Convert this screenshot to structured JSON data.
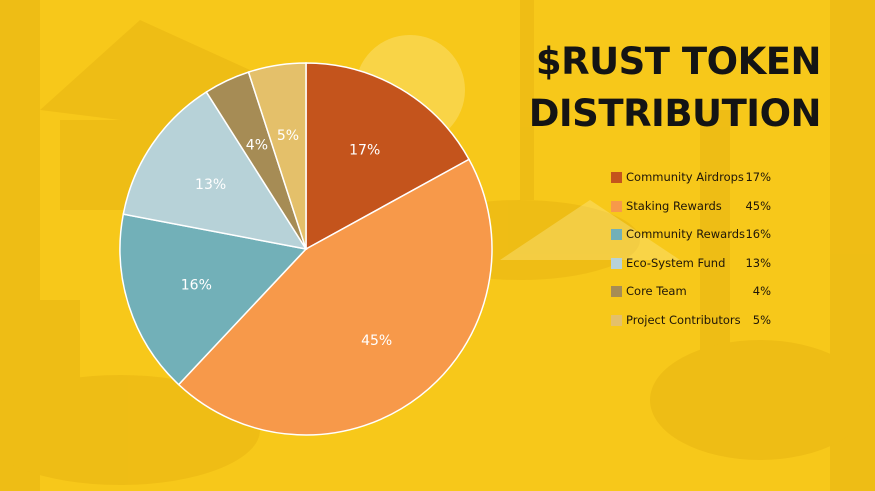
{
  "title_lines": [
    "$RUST TOKEN",
    "DISTRIBUTION"
  ],
  "chart_data": {
    "type": "pie",
    "title": "$RUST TOKEN DISTRIBUTION",
    "slices": [
      {
        "label": "Community Airdrops",
        "value": 17,
        "display": "17%",
        "color": "#c4541c"
      },
      {
        "label": "Staking Rewards",
        "value": 45,
        "display": "45%",
        "color": "#f7994a"
      },
      {
        "label": "Community Rewards",
        "value": 16,
        "display": "16%",
        "color": "#72b0b8"
      },
      {
        "label": "Eco-System Fund",
        "value": 13,
        "display": "13%",
        "color": "#b7d2d8"
      },
      {
        "label": "Core Team",
        "value": 4,
        "display": "4%",
        "color": "#a68c55"
      },
      {
        "label": "Project Contributors",
        "value": 5,
        "display": "5%",
        "color": "#e4c06a"
      }
    ],
    "legend_position": "right",
    "start_angle": "12 o'clock, clockwise"
  }
}
